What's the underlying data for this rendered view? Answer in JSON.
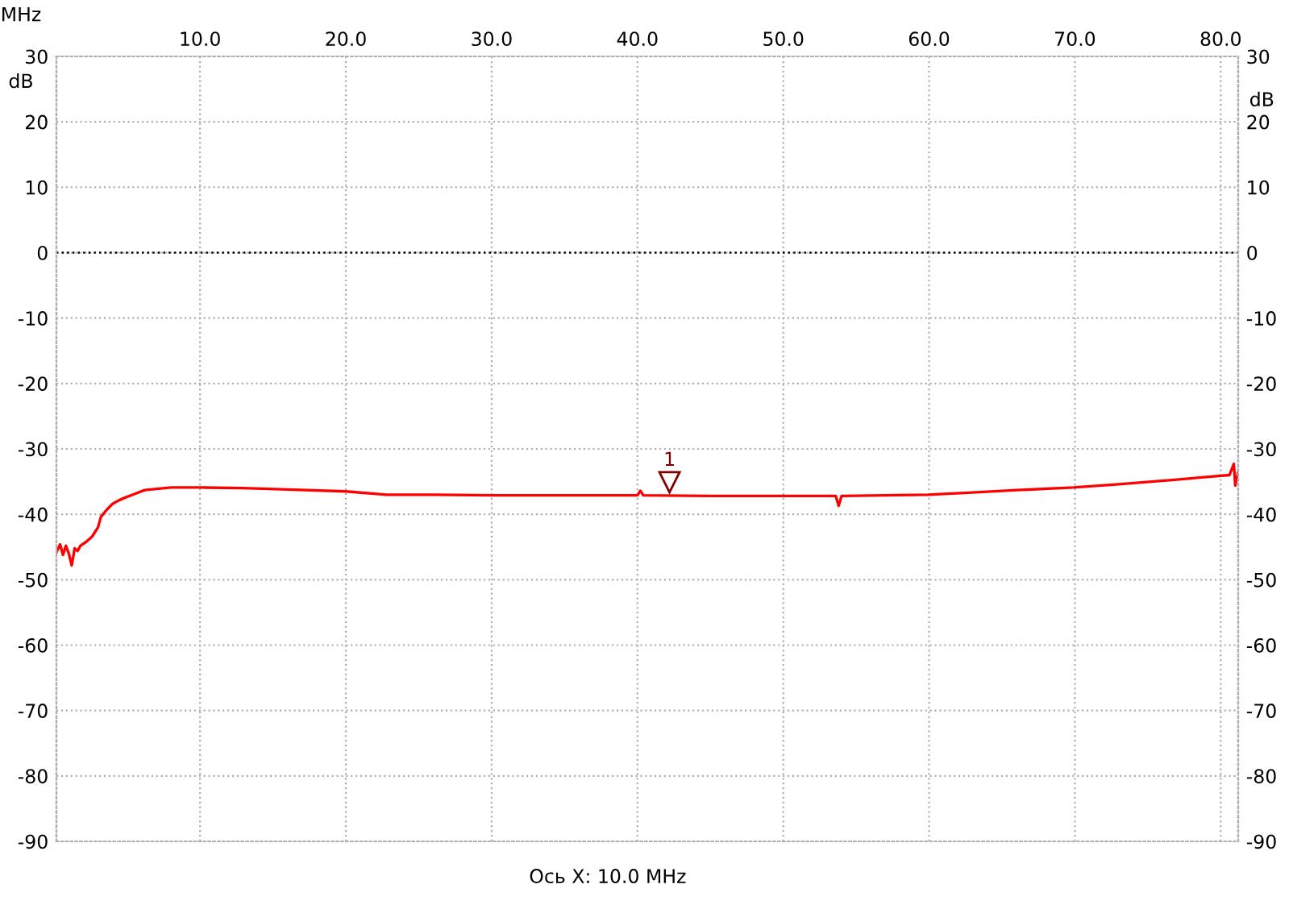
{
  "chart_data": {
    "type": "line",
    "xlabel": "MHz",
    "ylabel": "dB",
    "y2label": "dB",
    "x": [
      0.15,
      0.4,
      0.6,
      0.8,
      1.0,
      1.2,
      1.4,
      1.6,
      1.8,
      2.2,
      2.6,
      3.0,
      3.2,
      3.6,
      4.0,
      4.4,
      4.8,
      5.5,
      6.2,
      8.0,
      10.0,
      12.9,
      16.0,
      20.0,
      22.8,
      26.0,
      30.0,
      35.0,
      40.0,
      40.2,
      40.4,
      45.0,
      50.0,
      53.6,
      53.8,
      54.0,
      57.0,
      59.9,
      62.7,
      66.0,
      69.9,
      73.0,
      77.0,
      79.0,
      80.6,
      80.9,
      81.0,
      81.2
    ],
    "series": [
      {
        "color": "#ff0000",
        "values": [
          -45.8,
          -44.6,
          -46.2,
          -44.8,
          -46.0,
          -47.8,
          -45.2,
          -45.6,
          -44.8,
          -44.2,
          -43.4,
          -42.0,
          -40.4,
          -39.3,
          -38.4,
          -37.9,
          -37.5,
          -36.9,
          -36.3,
          -35.9,
          -35.9,
          -36.0,
          -36.2,
          -36.5,
          -37.0,
          -37.0,
          -37.1,
          -37.1,
          -37.1,
          -36.4,
          -37.1,
          -37.2,
          -37.2,
          -37.2,
          -38.7,
          -37.2,
          -37.1,
          -37.0,
          -36.7,
          -36.3,
          -35.9,
          -35.4,
          -34.7,
          -34.3,
          -34.0,
          -32.3,
          -35.6,
          -33.6
        ]
      }
    ],
    "xlim": [
      0.15,
      81.2
    ],
    "ylim": [
      -90,
      30
    ],
    "y2lim": [
      -90,
      30
    ],
    "xticks": [
      {
        "value": 10,
        "label": "10.0"
      },
      {
        "value": 20,
        "label": "20.0"
      },
      {
        "value": 30,
        "label": "30.0"
      },
      {
        "value": 40,
        "label": "40.0"
      },
      {
        "value": 50,
        "label": "50.0"
      },
      {
        "value": 60,
        "label": "60.0"
      },
      {
        "value": 70,
        "label": "70.0"
      },
      {
        "value": 80,
        "label": "80.0"
      }
    ],
    "yticks": [
      -90,
      -80,
      -70,
      -60,
      -50,
      -40,
      -30,
      -20,
      -10,
      0,
      10,
      20,
      30
    ],
    "y2ticks": [
      -90,
      -80,
      -70,
      -60,
      -50,
      -40,
      -30,
      -20,
      -10,
      0,
      10,
      20,
      30
    ],
    "ref_lines": [
      {
        "axis": "y",
        "value": 0,
        "color": "#000000",
        "line_style": "dotted"
      }
    ],
    "annotations": [
      {
        "text": "1",
        "x": 42.2,
        "y": -36.4
      },
      "Ось X: 10.0 MHz"
    ],
    "grid": true,
    "marker": "none",
    "line_style": "solid"
  }
}
